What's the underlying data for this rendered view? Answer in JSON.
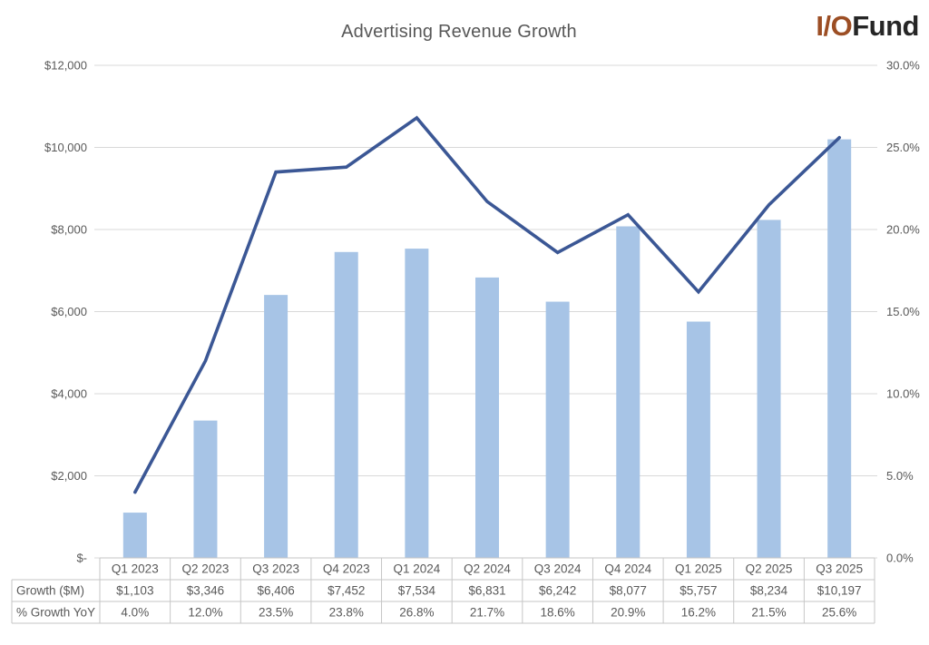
{
  "title": "Advertising Revenue Growth",
  "logo": {
    "io": "I/O",
    "fund": "Fund"
  },
  "colors": {
    "background": "#FFFFFF",
    "bar": "#A7C4E6",
    "line": "#3B5795",
    "gridline": "#D9D9D9",
    "table_border": "#C6C6C6",
    "axis_text": "#595959",
    "title_text": "#575757",
    "logo_io": "#9C4E24",
    "logo_fund": "#262626"
  },
  "chart_data": {
    "type": "bar+line combo",
    "title": "Advertising Revenue Growth",
    "grid": true,
    "legend_position": "none (data table below chart)",
    "categories": [
      "Q1 2023",
      "Q2 2023",
      "Q3 2023",
      "Q4 2023",
      "Q1 2024",
      "Q2 2024",
      "Q3 2024",
      "Q4 2024",
      "Q1 2025",
      "Q2 2025",
      "Q3 2025"
    ],
    "series": [
      {
        "name": "Growth ($M)",
        "type": "bar",
        "axis": "left",
        "values": [
          1103,
          3346,
          6406,
          7452,
          7534,
          6831,
          6242,
          8077,
          5757,
          8234,
          10197
        ],
        "labels": [
          "$1,103",
          "$3,346",
          "$6,406",
          "$7,452",
          "$7,534",
          "$6,831",
          "$6,242",
          "$8,077",
          "$5,757",
          "$8,234",
          "$10,197"
        ]
      },
      {
        "name": "% Growth YoY",
        "type": "line",
        "axis": "right",
        "values": [
          4.0,
          12.0,
          23.5,
          23.8,
          26.8,
          21.7,
          18.6,
          20.9,
          16.2,
          21.5,
          25.6
        ],
        "labels": [
          "4.0%",
          "12.0%",
          "23.5%",
          "23.8%",
          "26.8%",
          "21.7%",
          "18.6%",
          "20.9%",
          "16.2%",
          "21.5%",
          "25.6%"
        ]
      }
    ],
    "left_axis": {
      "min": 0,
      "max": 12000,
      "ticks": [
        "$12,000",
        "$10,000",
        "$8,000",
        "$6,000",
        "$4,000",
        "$2,000",
        "$-"
      ]
    },
    "right_axis": {
      "min": 0,
      "max": 30,
      "ticks": [
        "30.0%",
        "25.0%",
        "20.0%",
        "15.0%",
        "10.0%",
        "5.0%",
        "0.0%"
      ]
    }
  },
  "table": {
    "row_labels": [
      "Growth ($M)",
      "% Growth YoY"
    ],
    "columns": [
      "Q1 2023",
      "Q2 2023",
      "Q3 2023",
      "Q4 2023",
      "Q1 2024",
      "Q2 2024",
      "Q3 2024",
      "Q4 2024",
      "Q1 2025",
      "Q2 2025",
      "Q3 2025"
    ],
    "rows": [
      [
        "$1,103",
        "$3,346",
        "$6,406",
        "$7,452",
        "$7,534",
        "$6,831",
        "$6,242",
        "$8,077",
        "$5,757",
        "$8,234",
        "$10,197"
      ],
      [
        "4.0%",
        "12.0%",
        "23.5%",
        "23.8%",
        "26.8%",
        "21.7%",
        "18.6%",
        "20.9%",
        "16.2%",
        "21.5%",
        "25.6%"
      ]
    ]
  }
}
